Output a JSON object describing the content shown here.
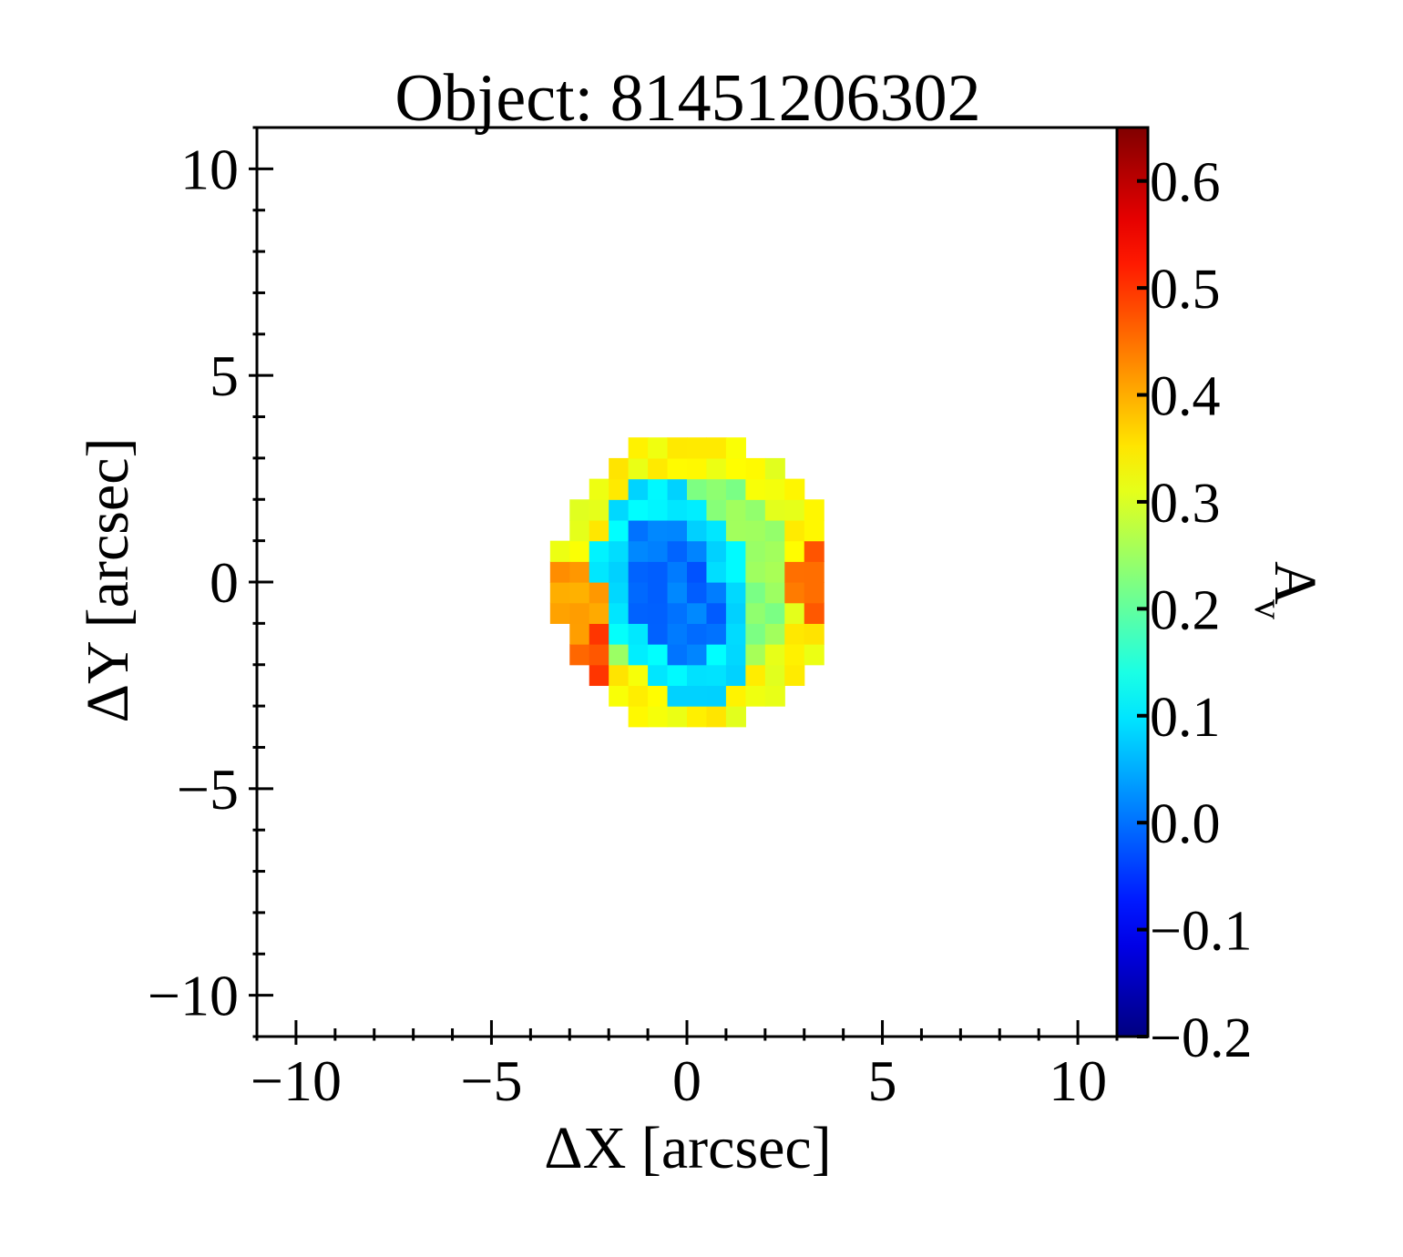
{
  "chart_data": {
    "type": "heatmap",
    "title": "Object: 81451206302",
    "xlabel": "ΔX [arcsec]",
    "ylabel": "ΔY [arcsec]",
    "colorbar_label": "A",
    "colorbar_label_subscript": "v",
    "xlim": [
      -11,
      11
    ],
    "ylim": [
      -11,
      11
    ],
    "x_ticks": [
      -10,
      -5,
      0,
      5,
      10
    ],
    "x_tick_labels": [
      "−10",
      "−5",
      "0",
      "5",
      "10"
    ],
    "y_ticks": [
      -10,
      -5,
      0,
      5,
      10
    ],
    "y_tick_labels": [
      "−10",
      "−5",
      "0",
      "5",
      "10"
    ],
    "minor_tick_step": 1,
    "colormap": "jet",
    "clim": [
      -0.2,
      0.65
    ],
    "colorbar_ticks": [
      -0.2,
      -0.1,
      0.0,
      0.1,
      0.2,
      0.3,
      0.4,
      0.5,
      0.6
    ],
    "colorbar_tick_labels": [
      "−0.2",
      "−0.1",
      "0.0",
      "0.1",
      "0.2",
      "0.3",
      "0.4",
      "0.5",
      "0.6"
    ],
    "pixel_size": 0.5,
    "grid": false,
    "map": {
      "shape": "disk",
      "center": [
        0.15,
        0.0
      ],
      "radius": 3.6,
      "inner_core": {
        "center": [
          -0.3,
          -0.2
        ],
        "semi_axes": [
          1.1,
          1.9
        ],
        "tilt_deg": 20,
        "value": 0.0
      },
      "ring": {
        "semi_axes": [
          1.9,
          2.8
        ],
        "tilt_deg": 20,
        "value": 0.1
      },
      "mid_zone_value": 0.24,
      "outer_rim_value": 0.33,
      "hotspots": [
        {
          "center": [
            3.5,
            0.0
          ],
          "value": 0.45
        },
        {
          "center": [
            -3.0,
            -1.9
          ],
          "value": 0.48
        },
        {
          "center": [
            -3.2,
            -0.5
          ],
          "value": 0.42
        }
      ]
    }
  }
}
